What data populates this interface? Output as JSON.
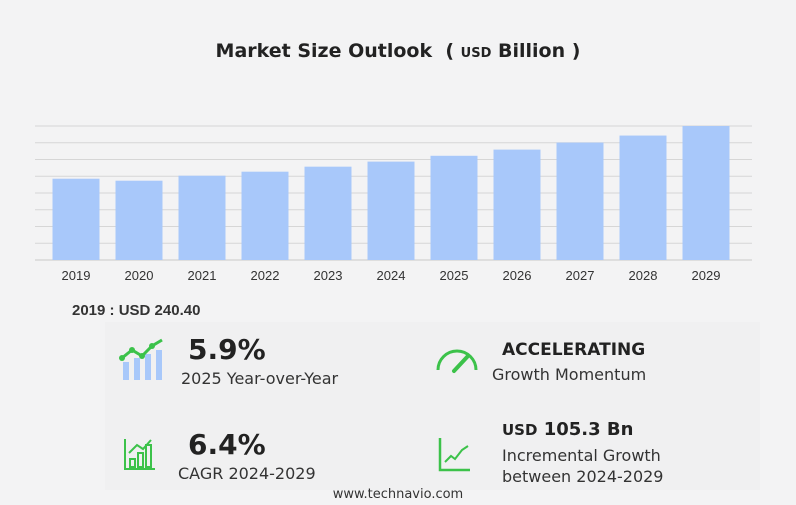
{
  "title": "Market Size Outlook",
  "title_unit_open": "(",
  "title_unit_small": "USD",
  "title_unit_big": "Billion",
  "title_unit_close": ")",
  "chart_data": {
    "type": "bar",
    "title": "Market Size Outlook (USD Billion)",
    "categories": [
      "2019",
      "2020",
      "2021",
      "2022",
      "2023",
      "2024",
      "2025",
      "2026",
      "2027",
      "2028",
      "2029"
    ],
    "values": [
      240.4,
      234.5,
      249.3,
      261.2,
      276.0,
      291.0,
      308.2,
      326.5,
      347.3,
      368.0,
      396.3
    ],
    "ylim": [
      0,
      400
    ],
    "grid": true,
    "bar_color": "#a8c8fa",
    "xlabel": "",
    "ylabel": ""
  },
  "first_value": "2019 : USD  240.40",
  "stats": {
    "yoy": {
      "value": "5.9%",
      "label": "2025 Year-over-Year"
    },
    "momentum": {
      "value": "ACCELERATING",
      "label": "Growth Momentum"
    },
    "cagr": {
      "value": "6.4%",
      "label": "CAGR 2024-2029"
    },
    "incremental": {
      "prefix": "USD",
      "value": "105.3 Bn",
      "label1": "Incremental Growth",
      "label2": "between 2024-2029"
    }
  },
  "accent": "#3cc24a",
  "footer": "www.technavio.com"
}
